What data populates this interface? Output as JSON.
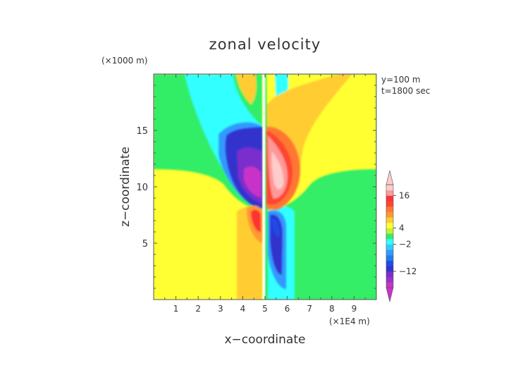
{
  "chart_data": {
    "type": "heatmap",
    "title": "zonal velocity",
    "xlabel": "x−coordinate",
    "ylabel": "z−coordinate",
    "x_unit": "(×1E4 m)",
    "y_unit": "(×1000 m)",
    "annotations": [
      "y=100 m",
      "t=1800 sec"
    ],
    "xlim": [
      0,
      10
    ],
    "ylim": [
      0,
      20
    ],
    "x_ticks": [
      1,
      2,
      3,
      4,
      5,
      6,
      7,
      8,
      9
    ],
    "y_ticks": [
      5,
      10,
      15
    ],
    "colorbar": {
      "labels": [
        {
          "value": 16,
          "text": "16"
        },
        {
          "value": 4,
          "text": "4"
        },
        {
          "value": -2,
          "text": "−2"
        },
        {
          "value": -12,
          "text": "−12"
        }
      ],
      "levels": [
        -18,
        -16,
        -14,
        -12,
        -10,
        -8,
        -6,
        -4,
        -2,
        0,
        2,
        4,
        6,
        8,
        10,
        12,
        14,
        16,
        18,
        20
      ],
      "colors": [
        "#c833c8",
        "#9933cc",
        "#7a2ecc",
        "#3333cc",
        "#1f4be6",
        "#1e7fe6",
        "#3399ff",
        "#33ccff",
        "#33ffff",
        "#33ee66",
        "#c8f032",
        "#ffff33",
        "#ffcc33",
        "#ff9933",
        "#ff7733",
        "#ff4433",
        "#ff3333",
        "#ff9999",
        "#ffcccc"
      ]
    },
    "regions": [
      {
        "name": "upper-negative-core",
        "x": 4.1,
        "z": 12.2,
        "value": -16
      },
      {
        "name": "upper-positive-core",
        "x": 5.7,
        "z": 11.3,
        "value": 19
      },
      {
        "name": "lower-positive-core",
        "x": 4.55,
        "z": 7.0,
        "value": 16
      },
      {
        "name": "lower-negative-core",
        "x": 5.5,
        "z": 5.5,
        "value": -12
      },
      {
        "name": "left-background",
        "x": 1.5,
        "z": 5,
        "value": 3
      },
      {
        "name": "right-background",
        "x": 8.5,
        "z": 5,
        "value": 0.5
      },
      {
        "name": "top-left-band",
        "x": 2,
        "z": 17,
        "value": -1
      },
      {
        "name": "top-right-band",
        "x": 7,
        "z": 17,
        "value": 1
      }
    ]
  }
}
